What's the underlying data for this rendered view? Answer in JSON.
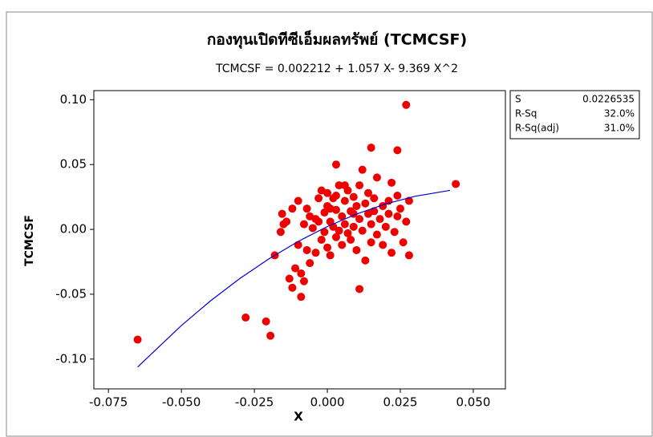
{
  "chart_data": {
    "type": "scatter",
    "title": "กองทุนเปิดทีซีเอ็มผลทรัพย์ (TCMCSF)",
    "subtitle": "TCMCSF = 0.002212 + 1.057 X- 9.369 X^2",
    "xlabel": "X",
    "ylabel": "TCMCSF",
    "color": "#ee0000",
    "x": [
      -0.065,
      -0.028,
      -0.021,
      -0.0195,
      -0.009,
      0.011,
      0.027,
      0.044,
      0.024,
      0.015,
      0.003,
      -0.018,
      -0.016,
      -0.0155,
      -0.014,
      -0.013,
      -0.012,
      -0.011,
      -0.01,
      -0.01,
      -0.008,
      -0.008,
      -0.007,
      -0.006,
      -0.006,
      -0.005,
      -0.004,
      -0.003,
      -0.003,
      -0.002,
      -0.002,
      -0.001,
      -0.001,
      0.0,
      0.0,
      0.0,
      0.001,
      0.001,
      0.002,
      0.002,
      0.003,
      0.003,
      0.004,
      0.004,
      0.005,
      0.005,
      0.006,
      0.006,
      0.007,
      0.007,
      0.008,
      0.008,
      0.009,
      0.009,
      0.01,
      0.01,
      0.011,
      0.011,
      0.012,
      0.012,
      0.013,
      0.013,
      0.014,
      0.014,
      0.015,
      0.015,
      0.016,
      0.016,
      0.017,
      0.017,
      0.018,
      0.019,
      0.019,
      0.02,
      0.021,
      0.021,
      0.022,
      0.022,
      0.023,
      0.024,
      0.024,
      0.025,
      0.026,
      0.027,
      0.028,
      0.028,
      -0.015,
      -0.012,
      -0.009,
      -0.004,
      0.001,
      0.003,
      0.006,
      0.009,
      -0.007
    ],
    "y": [
      -0.085,
      -0.068,
      -0.071,
      -0.082,
      -0.052,
      -0.046,
      0.096,
      0.035,
      0.061,
      0.063,
      0.05,
      -0.02,
      -0.002,
      0.012,
      0.006,
      -0.038,
      -0.045,
      -0.03,
      -0.012,
      0.022,
      0.004,
      -0.04,
      0.016,
      -0.026,
      0.01,
      0.001,
      -0.018,
      0.024,
      0.006,
      0.03,
      -0.008,
      0.013,
      -0.002,
      0.028,
      0.018,
      -0.014,
      0.006,
      -0.02,
      0.024,
      0.002,
      -0.006,
      0.015,
      0.034,
      -0.001,
      0.01,
      -0.012,
      0.022,
      0.004,
      -0.003,
      0.03,
      0.014,
      -0.008,
      0.025,
      0.002,
      0.018,
      -0.016,
      0.008,
      0.034,
      0.046,
      -0.001,
      0.02,
      -0.024,
      0.012,
      0.028,
      0.004,
      -0.01,
      0.024,
      0.014,
      0.04,
      -0.004,
      0.008,
      0.018,
      -0.012,
      0.002,
      0.022,
      0.012,
      -0.018,
      0.036,
      -0.002,
      0.026,
      0.01,
      0.016,
      -0.01,
      0.006,
      0.022,
      -0.02,
      0.004,
      0.016,
      -0.034,
      0.008,
      0.016,
      0.026,
      0.034,
      0.012,
      -0.016
    ],
    "fit": {
      "color": "#0000cc",
      "x": [
        -0.065,
        -0.05,
        -0.04,
        -0.03,
        -0.02,
        -0.01,
        0,
        0.01,
        0.02,
        0.03,
        0.042
      ],
      "y": [
        -0.1061,
        -0.0741,
        -0.05506,
        -0.03793,
        -0.02268,
        -0.009295,
        0.002212,
        0.011845,
        0.019604,
        0.02549,
        0.030079
      ]
    },
    "xlim": [
      -0.08,
      0.061
    ],
    "ylim": [
      -0.123,
      0.107
    ],
    "xticks": [
      -0.075,
      {
        "value": -0.05,
        "label": "-0.050"
      },
      -0.025,
      {
        "value": 0,
        "label": "0.000"
      },
      0.025,
      {
        "value": 0.05,
        "label": "0.050"
      }
    ],
    "yticks": [
      {
        "value": 0.1,
        "label": "0.10"
      },
      {
        "value": 0.05,
        "label": "0.05"
      },
      {
        "value": 0,
        "label": "0.00"
      },
      {
        "value": -0.05,
        "label": "-0.05"
      },
      {
        "value": -0.1,
        "label": "-0.10"
      }
    ],
    "stats": [
      {
        "label": "S",
        "value": "0.0226535"
      },
      {
        "label": "R-Sq",
        "value": "32.0%"
      },
      {
        "label": "R-Sq(adj)",
        "value": "31.0%"
      }
    ]
  }
}
